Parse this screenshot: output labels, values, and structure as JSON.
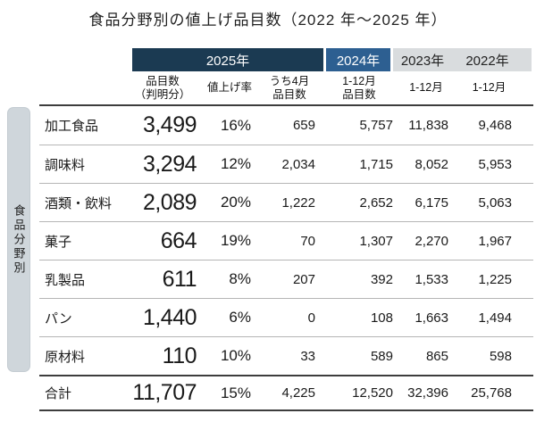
{
  "title": "食品分野別の値上げ品目数（2022 年～2025 年）",
  "sidebar_label": "食品分野別",
  "colors": {
    "year_2025_bg": "#1b3a52",
    "year_2024_bg": "#2d5f91",
    "year_prev_bg": "#d9dcde",
    "year_text_light": "#ffffff",
    "sidebar_bg": "#cfd6db",
    "thick_rule": "#3d3d3d",
    "thin_rule": "#b5b5b5",
    "text": "#1a1a1a"
  },
  "chart_data": {
    "type": "table",
    "title": "食品分野別の値上げ品目数（2022 年～2025 年）",
    "row_axis_label": "食品分野別",
    "year_headers": [
      {
        "label": "2025年",
        "span_columns": 3,
        "style": "navy"
      },
      {
        "label": "2024年",
        "span_columns": 1,
        "style": "blue"
      },
      {
        "label": "2023年",
        "span_columns": 1,
        "style": "gray"
      },
      {
        "label": "2022年",
        "span_columns": 1,
        "style": "gray"
      }
    ],
    "column_headers": [
      {
        "line1": "品目数",
        "line2": "（判明分）"
      },
      {
        "line1": "値上げ率",
        "line2": ""
      },
      {
        "line1": "うち4月",
        "line2": "品目数"
      },
      {
        "line1": "1-12月",
        "line2": "品目数"
      },
      {
        "line1": "1-12月",
        "line2": ""
      },
      {
        "line1": "1-12月",
        "line2": ""
      }
    ],
    "rows": [
      {
        "category": "加工食品",
        "values": [
          "3,499",
          "16%",
          "659",
          "5,757",
          "11,838",
          "9,468"
        ],
        "total": false
      },
      {
        "category": "調味料",
        "values": [
          "3,294",
          "12%",
          "2,034",
          "1,715",
          "8,052",
          "5,953"
        ],
        "total": false
      },
      {
        "category": "酒類・飲料",
        "values": [
          "2,089",
          "20%",
          "1,222",
          "2,652",
          "6,175",
          "5,063"
        ],
        "total": false
      },
      {
        "category": "菓子",
        "values": [
          "664",
          "19%",
          "70",
          "1,307",
          "2,270",
          "1,967"
        ],
        "total": false
      },
      {
        "category": "乳製品",
        "values": [
          "611",
          "8%",
          "207",
          "392",
          "1,533",
          "1,225"
        ],
        "total": false
      },
      {
        "category": "パン",
        "values": [
          "1,440",
          "6%",
          "0",
          "108",
          "1,663",
          "1,494"
        ],
        "total": false
      },
      {
        "category": "原材料",
        "values": [
          "110",
          "10%",
          "33",
          "589",
          "865",
          "598"
        ],
        "total": false
      },
      {
        "category": "合計",
        "values": [
          "11,707",
          "15%",
          "4,225",
          "12,520",
          "32,396",
          "25,768"
        ],
        "total": true
      }
    ]
  }
}
